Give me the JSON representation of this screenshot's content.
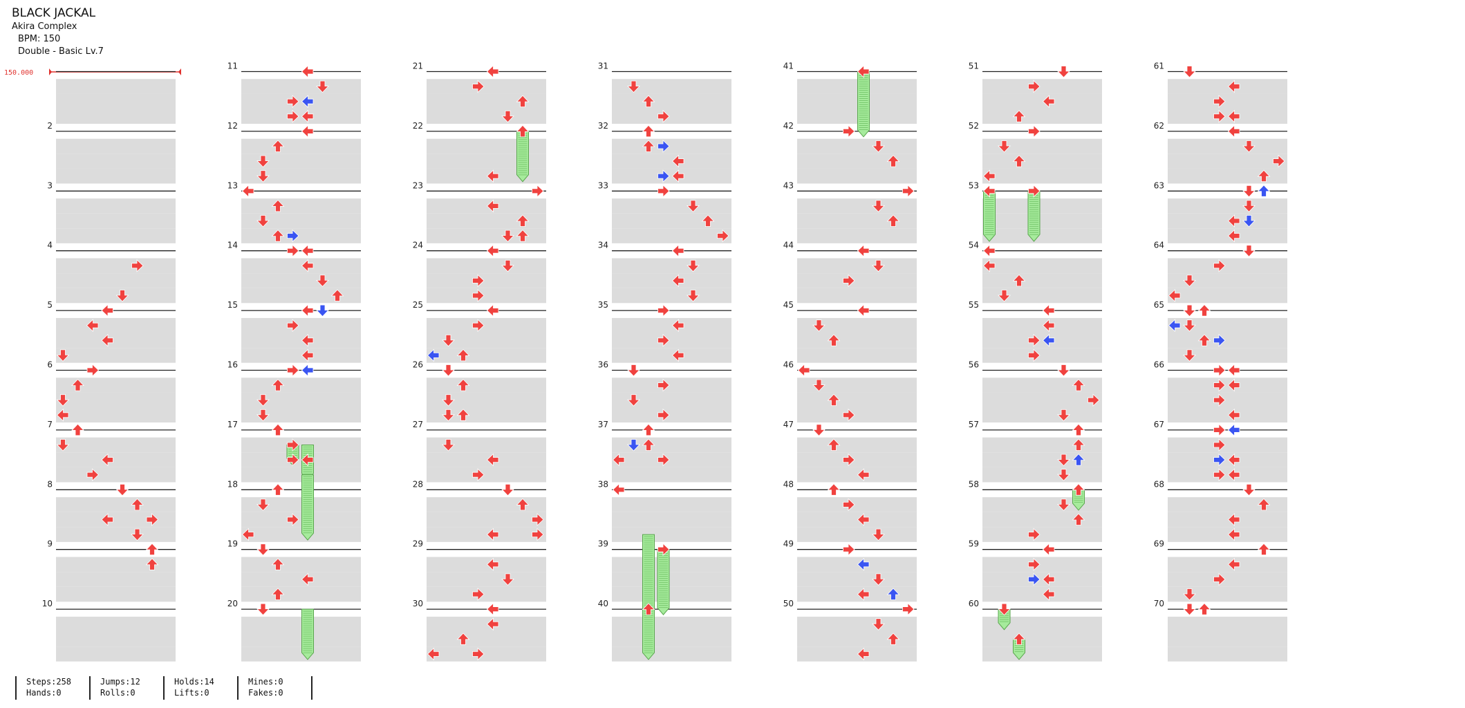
{
  "header": {
    "title": "BLACK JACKAL",
    "artist": "Akira Complex",
    "bpm_label": "BPM: 150",
    "difficulty": "Double - Basic Lv.7"
  },
  "bpm_marker": "150.000",
  "colors": {
    "red": "#f0423f",
    "blue": "#3a55f2",
    "hold": "#a6eb9c",
    "row_shade": "#dcdcdc"
  },
  "stats": {
    "steps": "Steps:258",
    "hands": "Hands:0",
    "jumps": "Jumps:12",
    "rolls": "Rolls:0",
    "holds": "Holds:14",
    "lifts": "Lifts:0",
    "mines": "Mines:0",
    "fakes": "Fakes:0"
  },
  "measure_labels": [
    "",
    "2",
    "3",
    "4",
    "5",
    "6",
    "7",
    "8",
    "9",
    "10",
    "11",
    "12",
    "13",
    "14",
    "15",
    "16",
    "17",
    "18",
    "19",
    "20",
    "21",
    "22",
    "23",
    "24",
    "25",
    "26",
    "27",
    "28",
    "29",
    "30",
    "31",
    "32",
    "33",
    "34",
    "35",
    "36",
    "37",
    "38",
    "39",
    "40",
    "41",
    "42",
    "43",
    "44",
    "45",
    "46",
    "47",
    "48",
    "49",
    "50",
    "51",
    "52",
    "53",
    "54",
    "55",
    "56",
    "57",
    "58",
    "59",
    "60",
    "61",
    "62",
    "63",
    "64",
    "65",
    "66",
    "67",
    "68",
    "69",
    "70"
  ],
  "notes": [
    [
      0,
      13,
      5,
      "R",
      0
    ],
    [
      0,
      15,
      4,
      "D",
      0
    ],
    [
      0,
      16,
      3,
      "L",
      0
    ],
    [
      0,
      17,
      2,
      "L",
      0
    ],
    [
      0,
      18,
      3,
      "L",
      0
    ],
    [
      0,
      19,
      0,
      "D",
      0
    ],
    [
      0,
      20,
      2,
      "R",
      0
    ],
    [
      0,
      21,
      1,
      "U",
      0
    ],
    [
      0,
      22,
      0,
      "D",
      0
    ],
    [
      0,
      23,
      0,
      "L",
      0
    ],
    [
      0,
      24,
      1,
      "U",
      0
    ],
    [
      0,
      25,
      0,
      "D",
      0
    ],
    [
      0,
      26,
      3,
      "L",
      0
    ],
    [
      0,
      27,
      2,
      "R",
      0
    ],
    [
      0,
      28,
      4,
      "D",
      0
    ],
    [
      0,
      29,
      5,
      "U",
      0
    ],
    [
      0,
      30,
      3,
      "L",
      0
    ],
    [
      0,
      30,
      6,
      "R",
      0
    ],
    [
      0,
      31,
      5,
      "D",
      0
    ],
    [
      0,
      32,
      6,
      "U",
      0
    ],
    [
      0,
      33,
      6,
      "U",
      0
    ],
    [
      1,
      0,
      4,
      "L",
      0
    ],
    [
      1,
      1,
      5,
      "D",
      0
    ],
    [
      1,
      2,
      3,
      "R",
      0
    ],
    [
      1,
      2,
      4,
      "L",
      1
    ],
    [
      1,
      3,
      3,
      "R",
      0
    ],
    [
      1,
      3,
      4,
      "L",
      0
    ],
    [
      1,
      4,
      4,
      "L",
      0
    ],
    [
      1,
      5,
      2,
      "U",
      0
    ],
    [
      1,
      6,
      1,
      "D",
      0
    ],
    [
      1,
      7,
      1,
      "D",
      0
    ],
    [
      1,
      8,
      0,
      "L",
      0
    ],
    [
      1,
      9,
      2,
      "U",
      0
    ],
    [
      1,
      10,
      1,
      "D",
      0
    ],
    [
      1,
      11,
      2,
      "U",
      0
    ],
    [
      1,
      11,
      3,
      "R",
      1
    ],
    [
      1,
      12,
      3,
      "R",
      0
    ],
    [
      1,
      12,
      4,
      "L",
      0
    ],
    [
      1,
      13,
      4,
      "L",
      0
    ],
    [
      1,
      14,
      5,
      "D",
      0
    ],
    [
      1,
      15,
      6,
      "U",
      0
    ],
    [
      1,
      16,
      4,
      "L",
      0
    ],
    [
      1,
      16,
      5,
      "D",
      1
    ],
    [
      1,
      17,
      3,
      "R",
      0
    ],
    [
      1,
      18,
      4,
      "L",
      0
    ],
    [
      1,
      19,
      4,
      "L",
      0
    ],
    [
      1,
      20,
      3,
      "R",
      0
    ],
    [
      1,
      20,
      4,
      "L",
      1
    ],
    [
      1,
      21,
      2,
      "U",
      0
    ],
    [
      1,
      22,
      1,
      "D",
      0
    ],
    [
      1,
      23,
      1,
      "D",
      0
    ],
    [
      1,
      24,
      2,
      "U",
      0
    ],
    [
      1,
      25,
      3,
      "R",
      0
    ],
    [
      1,
      26,
      3,
      "R",
      0
    ],
    [
      1,
      26,
      4,
      "L",
      0
    ],
    [
      1,
      28,
      2,
      "U",
      0
    ],
    [
      1,
      29,
      1,
      "D",
      0
    ],
    [
      1,
      30,
      3,
      "R",
      0
    ],
    [
      1,
      31,
      0,
      "L",
      0
    ],
    [
      1,
      32,
      1,
      "D",
      0
    ],
    [
      1,
      33,
      2,
      "U",
      0
    ],
    [
      1,
      34,
      4,
      "L",
      0
    ],
    [
      1,
      35,
      2,
      "U",
      0
    ],
    [
      1,
      36,
      1,
      "D",
      0
    ],
    [
      2,
      0,
      4,
      "L",
      0
    ],
    [
      2,
      1,
      3,
      "R",
      0
    ],
    [
      2,
      2,
      6,
      "U",
      0
    ],
    [
      2,
      3,
      5,
      "D",
      0
    ],
    [
      2,
      4,
      6,
      "U",
      0
    ],
    [
      2,
      7,
      4,
      "L",
      0
    ],
    [
      2,
      8,
      7,
      "R",
      0
    ],
    [
      2,
      9,
      4,
      "L",
      0
    ],
    [
      2,
      10,
      6,
      "U",
      0
    ],
    [
      2,
      11,
      5,
      "D",
      0
    ],
    [
      2,
      11,
      6,
      "U",
      0
    ],
    [
      2,
      12,
      4,
      "L",
      0
    ],
    [
      2,
      13,
      5,
      "D",
      0
    ],
    [
      2,
      14,
      3,
      "R",
      0
    ],
    [
      2,
      15,
      3,
      "R",
      0
    ],
    [
      2,
      16,
      4,
      "L",
      0
    ],
    [
      2,
      17,
      3,
      "R",
      0
    ],
    [
      2,
      18,
      1,
      "D",
      0
    ],
    [
      2,
      19,
      0,
      "L",
      1
    ],
    [
      2,
      19,
      2,
      "U",
      0
    ],
    [
      2,
      20,
      1,
      "D",
      0
    ],
    [
      2,
      21,
      2,
      "U",
      0
    ],
    [
      2,
      22,
      1,
      "D",
      0
    ],
    [
      2,
      23,
      1,
      "D",
      0
    ],
    [
      2,
      23,
      2,
      "U",
      0
    ],
    [
      2,
      25,
      1,
      "D",
      0
    ],
    [
      2,
      26,
      4,
      "L",
      0
    ],
    [
      2,
      27,
      3,
      "R",
      0
    ],
    [
      2,
      28,
      5,
      "D",
      0
    ],
    [
      2,
      29,
      6,
      "U",
      0
    ],
    [
      2,
      30,
      7,
      "R",
      0
    ],
    [
      2,
      31,
      4,
      "L",
      0
    ],
    [
      2,
      31,
      7,
      "R",
      0
    ],
    [
      2,
      33,
      4,
      "L",
      0
    ],
    [
      2,
      34,
      5,
      "D",
      0
    ],
    [
      2,
      35,
      3,
      "R",
      0
    ],
    [
      2,
      36,
      4,
      "L",
      0
    ],
    [
      2,
      37,
      4,
      "L",
      0
    ],
    [
      2,
      38,
      2,
      "U",
      0
    ],
    [
      2,
      39,
      0,
      "L",
      0
    ],
    [
      2,
      39,
      3,
      "R",
      0
    ],
    [
      3,
      1,
      1,
      "D",
      0
    ],
    [
      3,
      2,
      2,
      "U",
      0
    ],
    [
      3,
      3,
      3,
      "R",
      0
    ],
    [
      3,
      4,
      2,
      "U",
      0
    ],
    [
      3,
      5,
      2,
      "U",
      0
    ],
    [
      3,
      5,
      3,
      "R",
      1
    ],
    [
      3,
      6,
      4,
      "L",
      0
    ],
    [
      3,
      7,
      3,
      "R",
      1
    ],
    [
      3,
      7,
      4,
      "L",
      0
    ],
    [
      3,
      8,
      3,
      "R",
      0
    ],
    [
      3,
      9,
      5,
      "D",
      0
    ],
    [
      3,
      10,
      6,
      "U",
      0
    ],
    [
      3,
      11,
      7,
      "R",
      0
    ],
    [
      3,
      12,
      4,
      "L",
      0
    ],
    [
      3,
      13,
      5,
      "D",
      0
    ],
    [
      3,
      14,
      4,
      "L",
      0
    ],
    [
      3,
      15,
      5,
      "D",
      0
    ],
    [
      3,
      16,
      3,
      "R",
      0
    ],
    [
      3,
      17,
      4,
      "L",
      0
    ],
    [
      3,
      18,
      3,
      "R",
      0
    ],
    [
      3,
      19,
      4,
      "L",
      0
    ],
    [
      3,
      20,
      1,
      "D",
      0
    ],
    [
      3,
      21,
      3,
      "R",
      0
    ],
    [
      3,
      22,
      1,
      "D",
      0
    ],
    [
      3,
      23,
      3,
      "R",
      0
    ],
    [
      3,
      24,
      2,
      "U",
      0
    ],
    [
      3,
      25,
      1,
      "D",
      1
    ],
    [
      3,
      25,
      2,
      "U",
      0
    ],
    [
      3,
      26,
      0,
      "L",
      0
    ],
    [
      3,
      26,
      3,
      "R",
      0
    ],
    [
      3,
      28,
      0,
      "L",
      0
    ],
    [
      3,
      32,
      3,
      "R",
      0
    ],
    [
      3,
      36,
      2,
      "U",
      0
    ],
    [
      4,
      0,
      4,
      "L",
      0
    ],
    [
      4,
      4,
      3,
      "R",
      0
    ],
    [
      4,
      5,
      5,
      "D",
      0
    ],
    [
      4,
      6,
      6,
      "U",
      0
    ],
    [
      4,
      8,
      7,
      "R",
      0
    ],
    [
      4,
      9,
      5,
      "D",
      0
    ],
    [
      4,
      10,
      6,
      "U",
      0
    ],
    [
      4,
      12,
      4,
      "L",
      0
    ],
    [
      4,
      13,
      5,
      "D",
      0
    ],
    [
      4,
      14,
      3,
      "R",
      0
    ],
    [
      4,
      16,
      4,
      "L",
      0
    ],
    [
      4,
      17,
      1,
      "D",
      0
    ],
    [
      4,
      18,
      2,
      "U",
      0
    ],
    [
      4,
      20,
      0,
      "L",
      0
    ],
    [
      4,
      21,
      1,
      "D",
      0
    ],
    [
      4,
      22,
      2,
      "U",
      0
    ],
    [
      4,
      23,
      3,
      "R",
      0
    ],
    [
      4,
      24,
      1,
      "D",
      0
    ],
    [
      4,
      25,
      2,
      "U",
      0
    ],
    [
      4,
      26,
      3,
      "R",
      0
    ],
    [
      4,
      27,
      4,
      "L",
      0
    ],
    [
      4,
      28,
      2,
      "U",
      0
    ],
    [
      4,
      29,
      3,
      "R",
      0
    ],
    [
      4,
      30,
      4,
      "L",
      0
    ],
    [
      4,
      31,
      5,
      "D",
      0
    ],
    [
      4,
      32,
      3,
      "R",
      0
    ],
    [
      4,
      33,
      4,
      "L",
      1
    ],
    [
      4,
      34,
      5,
      "D",
      0
    ],
    [
      4,
      35,
      4,
      "L",
      0
    ],
    [
      4,
      35,
      6,
      "U",
      1
    ],
    [
      4,
      36,
      7,
      "R",
      0
    ],
    [
      4,
      37,
      5,
      "D",
      0
    ],
    [
      4,
      38,
      6,
      "U",
      0
    ],
    [
      4,
      39,
      4,
      "L",
      0
    ],
    [
      5,
      0,
      5,
      "D",
      0
    ],
    [
      5,
      1,
      3,
      "R",
      0
    ],
    [
      5,
      2,
      4,
      "L",
      0
    ],
    [
      5,
      3,
      2,
      "U",
      0
    ],
    [
      5,
      4,
      3,
      "R",
      0
    ],
    [
      5,
      5,
      1,
      "D",
      0
    ],
    [
      5,
      6,
      2,
      "U",
      0
    ],
    [
      5,
      7,
      0,
      "L",
      0
    ],
    [
      5,
      8,
      0,
      "L",
      0
    ],
    [
      5,
      8,
      3,
      "R",
      0
    ],
    [
      5,
      12,
      0,
      "L",
      0
    ],
    [
      5,
      13,
      0,
      "L",
      0
    ],
    [
      5,
      14,
      2,
      "U",
      0
    ],
    [
      5,
      15,
      1,
      "D",
      0
    ],
    [
      5,
      16,
      4,
      "L",
      0
    ],
    [
      5,
      17,
      4,
      "L",
      0
    ],
    [
      5,
      18,
      3,
      "R",
      0
    ],
    [
      5,
      18,
      4,
      "L",
      1
    ],
    [
      5,
      19,
      3,
      "R",
      0
    ],
    [
      5,
      20,
      5,
      "D",
      0
    ],
    [
      5,
      21,
      6,
      "U",
      0
    ],
    [
      5,
      22,
      7,
      "R",
      0
    ],
    [
      5,
      23,
      5,
      "D",
      0
    ],
    [
      5,
      24,
      6,
      "U",
      0
    ],
    [
      5,
      25,
      6,
      "U",
      0
    ],
    [
      5,
      26,
      5,
      "D",
      0
    ],
    [
      5,
      26,
      6,
      "U",
      1
    ],
    [
      5,
      27,
      5,
      "D",
      0
    ],
    [
      5,
      28,
      6,
      "U",
      0
    ],
    [
      5,
      29,
      5,
      "D",
      0
    ],
    [
      5,
      30,
      6,
      "U",
      0
    ],
    [
      5,
      31,
      3,
      "R",
      0
    ],
    [
      5,
      32,
      4,
      "L",
      0
    ],
    [
      5,
      33,
      3,
      "R",
      0
    ],
    [
      5,
      34,
      4,
      "L",
      0
    ],
    [
      5,
      34,
      3,
      "R",
      1
    ],
    [
      5,
      35,
      4,
      "L",
      0
    ],
    [
      5,
      36,
      1,
      "D",
      0
    ],
    [
      5,
      38,
      2,
      "U",
      0
    ],
    [
      6,
      0,
      1,
      "D",
      0
    ],
    [
      6,
      1,
      4,
      "L",
      0
    ],
    [
      6,
      2,
      3,
      "R",
      0
    ],
    [
      6,
      3,
      3,
      "R",
      0
    ],
    [
      6,
      3,
      4,
      "L",
      0
    ],
    [
      6,
      4,
      4,
      "L",
      0
    ],
    [
      6,
      5,
      5,
      "D",
      0
    ],
    [
      6,
      6,
      7,
      "R",
      0
    ],
    [
      6,
      7,
      6,
      "U",
      0
    ],
    [
      6,
      8,
      5,
      "D",
      0
    ],
    [
      6,
      8,
      6,
      "U",
      1
    ],
    [
      6,
      9,
      5,
      "D",
      0
    ],
    [
      6,
      10,
      4,
      "L",
      0
    ],
    [
      6,
      10,
      5,
      "D",
      1
    ],
    [
      6,
      11,
      4,
      "L",
      0
    ],
    [
      6,
      12,
      5,
      "D",
      0
    ],
    [
      6,
      13,
      3,
      "R",
      0
    ],
    [
      6,
      14,
      1,
      "D",
      0
    ],
    [
      6,
      15,
      0,
      "L",
      0
    ],
    [
      6,
      16,
      1,
      "D",
      0
    ],
    [
      6,
      16,
      2,
      "U",
      0
    ],
    [
      6,
      17,
      0,
      "L",
      1
    ],
    [
      6,
      17,
      1,
      "D",
      0
    ],
    [
      6,
      18,
      2,
      "U",
      0
    ],
    [
      6,
      18,
      3,
      "R",
      1
    ],
    [
      6,
      19,
      1,
      "D",
      0
    ],
    [
      6,
      20,
      3,
      "R",
      0
    ],
    [
      6,
      20,
      4,
      "L",
      0
    ],
    [
      6,
      21,
      3,
      "R",
      0
    ],
    [
      6,
      21,
      4,
      "L",
      0
    ],
    [
      6,
      22,
      3,
      "R",
      0
    ],
    [
      6,
      23,
      4,
      "L",
      0
    ],
    [
      6,
      24,
      3,
      "R",
      0
    ],
    [
      6,
      24,
      4,
      "L",
      1
    ],
    [
      6,
      25,
      3,
      "R",
      0
    ],
    [
      6,
      26,
      4,
      "L",
      0
    ],
    [
      6,
      26,
      3,
      "R",
      1
    ],
    [
      6,
      27,
      3,
      "R",
      0
    ],
    [
      6,
      27,
      4,
      "L",
      0
    ],
    [
      6,
      28,
      5,
      "D",
      0
    ],
    [
      6,
      29,
      6,
      "U",
      0
    ],
    [
      6,
      30,
      4,
      "L",
      0
    ],
    [
      6,
      31,
      4,
      "L",
      0
    ],
    [
      6,
      32,
      6,
      "U",
      0
    ],
    [
      6,
      33,
      4,
      "L",
      0
    ],
    [
      6,
      34,
      3,
      "R",
      0
    ],
    [
      6,
      35,
      1,
      "D",
      0
    ],
    [
      6,
      36,
      1,
      "D",
      0
    ],
    [
      6,
      36,
      2,
      "U",
      0
    ]
  ],
  "holds": [
    [
      1,
      25,
      3,
      26
    ],
    [
      1,
      25,
      4,
      27
    ],
    [
      1,
      27,
      4,
      31
    ],
    [
      1,
      36,
      4,
      39
    ],
    [
      2,
      4,
      6,
      7
    ],
    [
      3,
      31,
      2,
      38
    ],
    [
      3,
      32,
      3,
      36
    ],
    [
      3,
      36,
      2,
      39
    ],
    [
      4,
      0,
      4,
      4
    ],
    [
      5,
      8,
      0,
      11
    ],
    [
      5,
      8,
      3,
      11
    ],
    [
      5,
      28,
      6,
      29
    ],
    [
      5,
      36,
      1,
      37
    ],
    [
      5,
      38,
      2,
      39
    ]
  ]
}
